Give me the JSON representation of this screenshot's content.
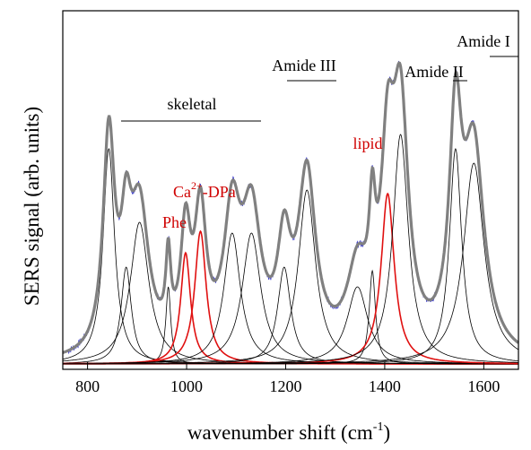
{
  "chart_data": {
    "type": "line",
    "xlabel": "wavenumber shift (cm",
    "xlabel_sup": "-1",
    "xlabel_close": ")",
    "ylabel": "SERS signal (arb. units)",
    "xlim": [
      750,
      1670
    ],
    "ylim": [
      0,
      1.0
    ],
    "x_ticks": [
      800,
      1000,
      1200,
      1400,
      1600
    ],
    "grid": false,
    "legend": "none",
    "annotations": {
      "skeletal": "skeletal",
      "amide3": "Amide III",
      "amide2": "Amide II",
      "amide1": "Amide I",
      "lipid": "lipid",
      "ca_main": "Ca",
      "ca_sup": "2+",
      "ca_rest": "-DPa",
      "phe": "Phe"
    },
    "colors": {
      "raw": "#3c3cc8",
      "envelope": "#808080",
      "component": "#000000",
      "highlight": "#e01010",
      "annotation_red": "#d00000",
      "axis": "#000000"
    },
    "baseline": 0.015,
    "components": [
      {
        "center": 843,
        "height": 0.6,
        "width": 28,
        "highlight": false
      },
      {
        "center": 878,
        "height": 0.27,
        "width": 25,
        "highlight": false
      },
      {
        "center": 905,
        "height": 0.395,
        "width": 45,
        "highlight": false
      },
      {
        "center": 963,
        "height": 0.215,
        "width": 12,
        "highlight": false
      },
      {
        "center": 998,
        "height": 0.31,
        "width": 24,
        "highlight": true
      },
      {
        "center": 1028,
        "height": 0.37,
        "width": 28,
        "highlight": true
      },
      {
        "center": 1092,
        "height": 0.365,
        "width": 40,
        "highlight": false
      },
      {
        "center": 1131,
        "height": 0.365,
        "width": 45,
        "highlight": false
      },
      {
        "center": 1197,
        "height": 0.27,
        "width": 32,
        "highlight": false
      },
      {
        "center": 1243,
        "height": 0.485,
        "width": 42,
        "highlight": false
      },
      {
        "center": 1345,
        "height": 0.215,
        "width": 50,
        "highlight": false
      },
      {
        "center": 1375,
        "height": 0.26,
        "width": 15,
        "highlight": false
      },
      {
        "center": 1406,
        "height": 0.475,
        "width": 32,
        "highlight": true
      },
      {
        "center": 1432,
        "height": 0.64,
        "width": 38,
        "highlight": false
      },
      {
        "center": 1543,
        "height": 0.6,
        "width": 30,
        "highlight": false
      },
      {
        "center": 1580,
        "height": 0.56,
        "width": 50,
        "highlight": false
      }
    ]
  }
}
